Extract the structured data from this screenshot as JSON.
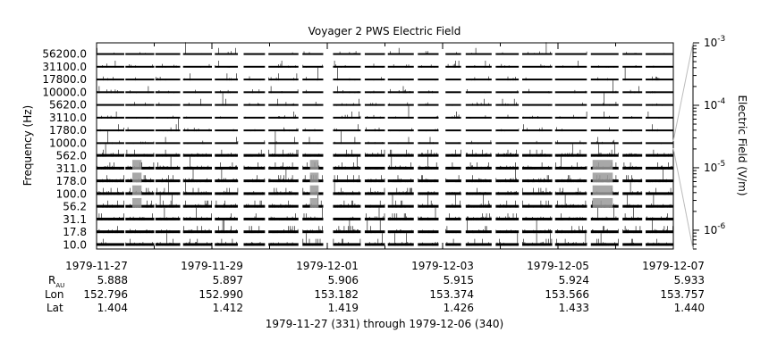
{
  "chart_data": {
    "type": "heatmap",
    "title": "Voyager 2 PWS Electric Field",
    "ylabel": "Frequency (Hz)",
    "colorbar_label": "Electric Field (V/m)",
    "colorbar_scale": "log",
    "colorbar_range": [
      5e-07,
      0.001
    ],
    "colorbar_ticks": [
      {
        "mantissa": "10",
        "exponent": "-3",
        "value": 0.001
      },
      {
        "mantissa": "10",
        "exponent": "-4",
        "value": 0.0001
      },
      {
        "mantissa": "10",
        "exponent": "-5",
        "value": 1e-05
      },
      {
        "mantissa": "10",
        "exponent": "-6",
        "value": 1e-06
      }
    ],
    "channels": [
      "56200.0",
      "31100.0",
      "17800.0",
      "10000.0",
      "5620.0",
      "3110.0",
      "1780.0",
      "1000.0",
      "562.0",
      "311.0",
      "178.0",
      "100.0",
      "56.2",
      "31.1",
      "17.8",
      "10.0"
    ],
    "x_range": [
      "1979-11-27",
      "1979-12-07"
    ],
    "x_ticks": [
      "1979-11-27",
      "1979-11-29",
      "1979-12-01",
      "1979-12-03",
      "1979-12-05",
      "1979-12-07"
    ],
    "ephemeris": {
      "labels": {
        "r_main": "R",
        "r_sub": "AU",
        "lon": "Lon",
        "lat": "Lat"
      },
      "r_au": [
        "5.888",
        "5.897",
        "5.906",
        "5.915",
        "5.924",
        "5.933"
      ],
      "lon": [
        "152.796",
        "152.990",
        "153.182",
        "153.374",
        "153.566",
        "153.757"
      ],
      "lat": [
        "1.404",
        "1.412",
        "1.419",
        "1.426",
        "1.433",
        "1.440"
      ]
    },
    "data_segments": [
      [
        0.0,
        0.48
      ],
      [
        0.5,
        1.0
      ],
      [
        1.02,
        1.45
      ],
      [
        1.5,
        2.0
      ],
      [
        2.05,
        2.45
      ],
      [
        2.55,
        2.92
      ],
      [
        2.98,
        3.5
      ],
      [
        3.57,
        3.93
      ],
      [
        4.1,
        4.58
      ],
      [
        4.65,
        5.0
      ],
      [
        5.05,
        5.5
      ],
      [
        5.57,
        5.93
      ],
      [
        6.05,
        6.32
      ],
      [
        6.4,
        6.85
      ],
      [
        6.92,
        7.32
      ],
      [
        7.38,
        7.9
      ],
      [
        7.95,
        8.5
      ],
      [
        8.57,
        9.05
      ],
      [
        9.12,
        9.46
      ],
      [
        9.52,
        10.0
      ]
    ],
    "caption": "1979-11-27 (331) through 1979-12-06 (340)"
  }
}
